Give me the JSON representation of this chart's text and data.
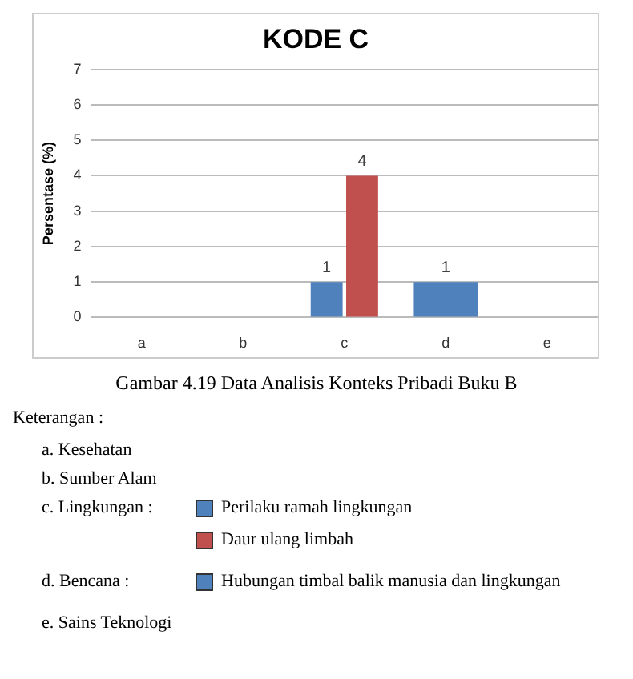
{
  "chart_data": {
    "type": "bar",
    "title": "KODE C",
    "ylabel": "Persentase (%)",
    "categories": [
      "a",
      "b",
      "c",
      "d",
      "e"
    ],
    "series": [
      {
        "name": "Perilaku ramah lingkungan",
        "color": "#4f81bd",
        "values": [
          null,
          null,
          1,
          null,
          null
        ]
      },
      {
        "name": "Daur ulang limbah",
        "color": "#c0504d",
        "values": [
          null,
          null,
          4,
          null,
          null
        ]
      },
      {
        "name": "Hubungan timbal balik manusia dan lingkungan",
        "color": "#4f81bd",
        "values": [
          null,
          null,
          null,
          1,
          null
        ]
      }
    ],
    "ylim": [
      0,
      7
    ],
    "yticks": [
      0,
      1,
      2,
      3,
      4,
      5,
      6,
      7
    ],
    "grid": "y",
    "data_labels": true,
    "legend": "bottom",
    "annotations": [
      "Gambar 4.19 Data Analisis Konteks Pribadi Buku B",
      "Keterangan :",
      "a.  Kesehatan",
      "b.  Sumber Alam",
      "c.  Lingkungan :",
      "d.  Bencana :",
      "e.  Sains Teknologi"
    ]
  }
}
